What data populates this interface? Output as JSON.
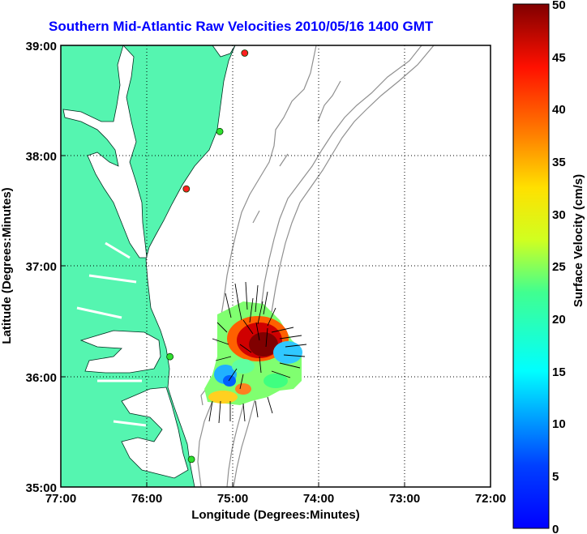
{
  "title": "Southern Mid-Atlantic Raw Velocities 2010/05/16 1400 GMT",
  "map": {
    "xlabel": "Longitude (Degrees:Minutes)",
    "ylabel": "Latitude (Degrees:Minutes)",
    "lon_ticks": [
      "77:00",
      "76:00",
      "75:00",
      "74:00",
      "73:00",
      "72:00"
    ],
    "lat_ticks": [
      "39:00",
      "38:00",
      "37:00",
      "36:00",
      "35:00"
    ],
    "lon_range": [
      -77,
      -72
    ],
    "lat_range": [
      35,
      39
    ],
    "land_color": "#55f5b0",
    "bathymetry_color": "#909090",
    "grid": true
  },
  "colorbar": {
    "label": "Surface Velocity (cm/s)",
    "ticks": [
      "50",
      "45",
      "40",
      "35",
      "30",
      "25",
      "20",
      "15",
      "10",
      "5",
      "0"
    ],
    "range": [
      0,
      50
    ],
    "colormap": "jet"
  },
  "stations": [
    {
      "lon": -74.86,
      "lat": 38.93,
      "color": "#ff2020"
    },
    {
      "lon": -75.15,
      "lat": 38.22,
      "color": "#30e030"
    },
    {
      "lon": -75.54,
      "lat": 37.7,
      "color": "#ff2020"
    },
    {
      "lon": -75.73,
      "lat": 36.18,
      "color": "#30e030"
    },
    {
      "lon": -75.48,
      "lat": 35.25,
      "color": "#30e030"
    }
  ]
}
